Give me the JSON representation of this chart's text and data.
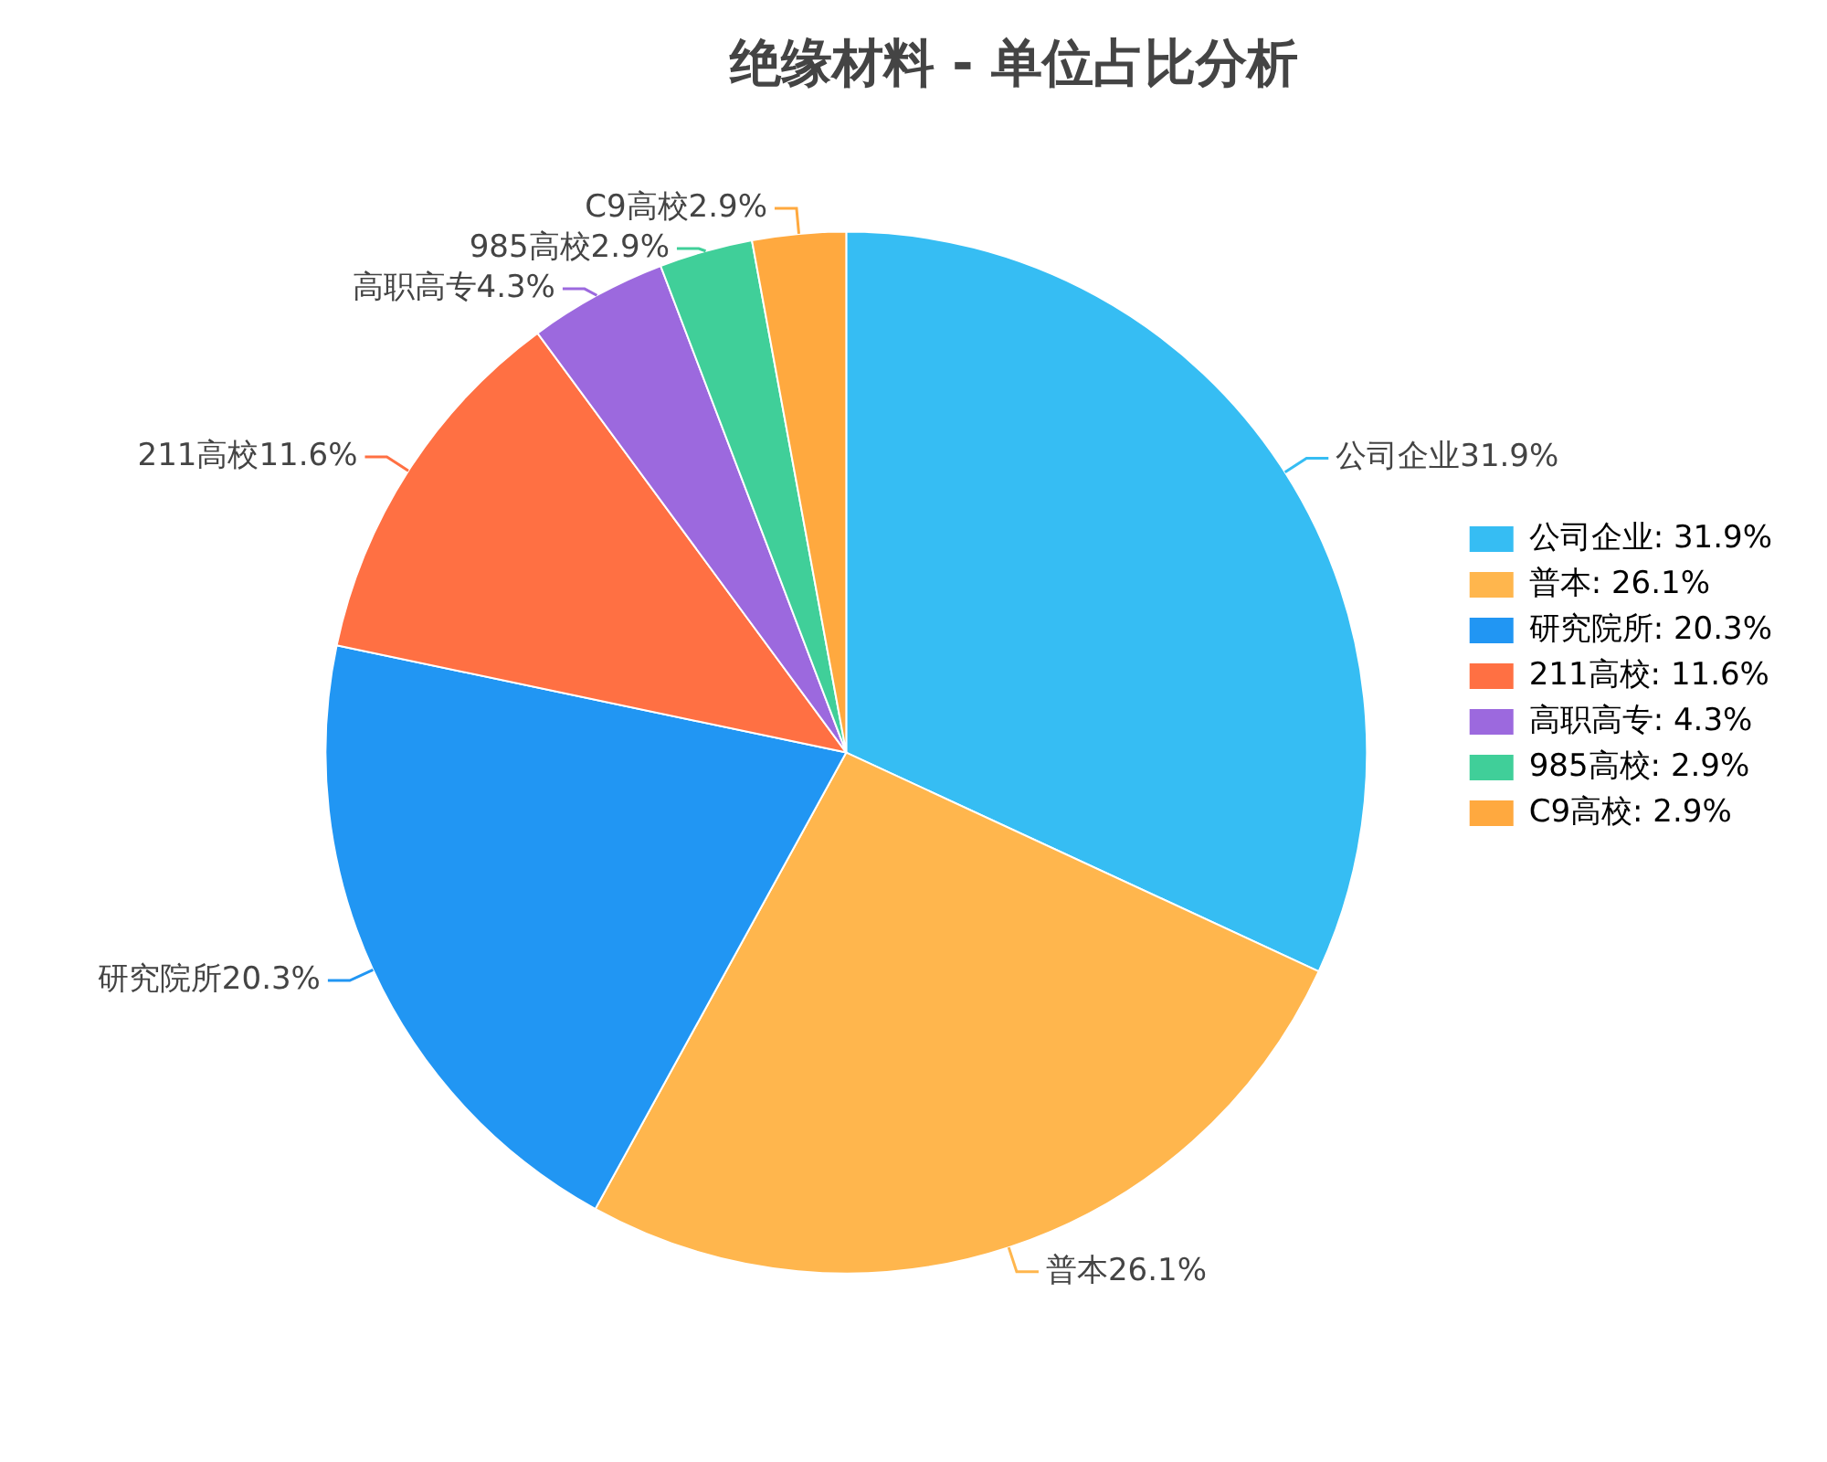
{
  "chart_data": {
    "type": "pie",
    "title": "绝缘材料 - 单位占比分析",
    "categories": [
      "公司企业",
      "普本",
      "研究院所",
      "211高校",
      "高职高专",
      "985高校",
      "C9高校"
    ],
    "values": [
      31.9,
      26.1,
      20.3,
      11.6,
      4.3,
      2.9,
      2.9
    ],
    "value_labels": [
      "31.9%",
      "26.1%",
      "20.3%",
      "11.6%",
      "4.3%",
      "2.9%",
      "2.9%"
    ],
    "colors": [
      "#36bdf3",
      "#ffb64d",
      "#2196f3",
      "#ff7043",
      "#9c69de",
      "#40cf99",
      "#ffa93f"
    ],
    "legend": "right"
  }
}
